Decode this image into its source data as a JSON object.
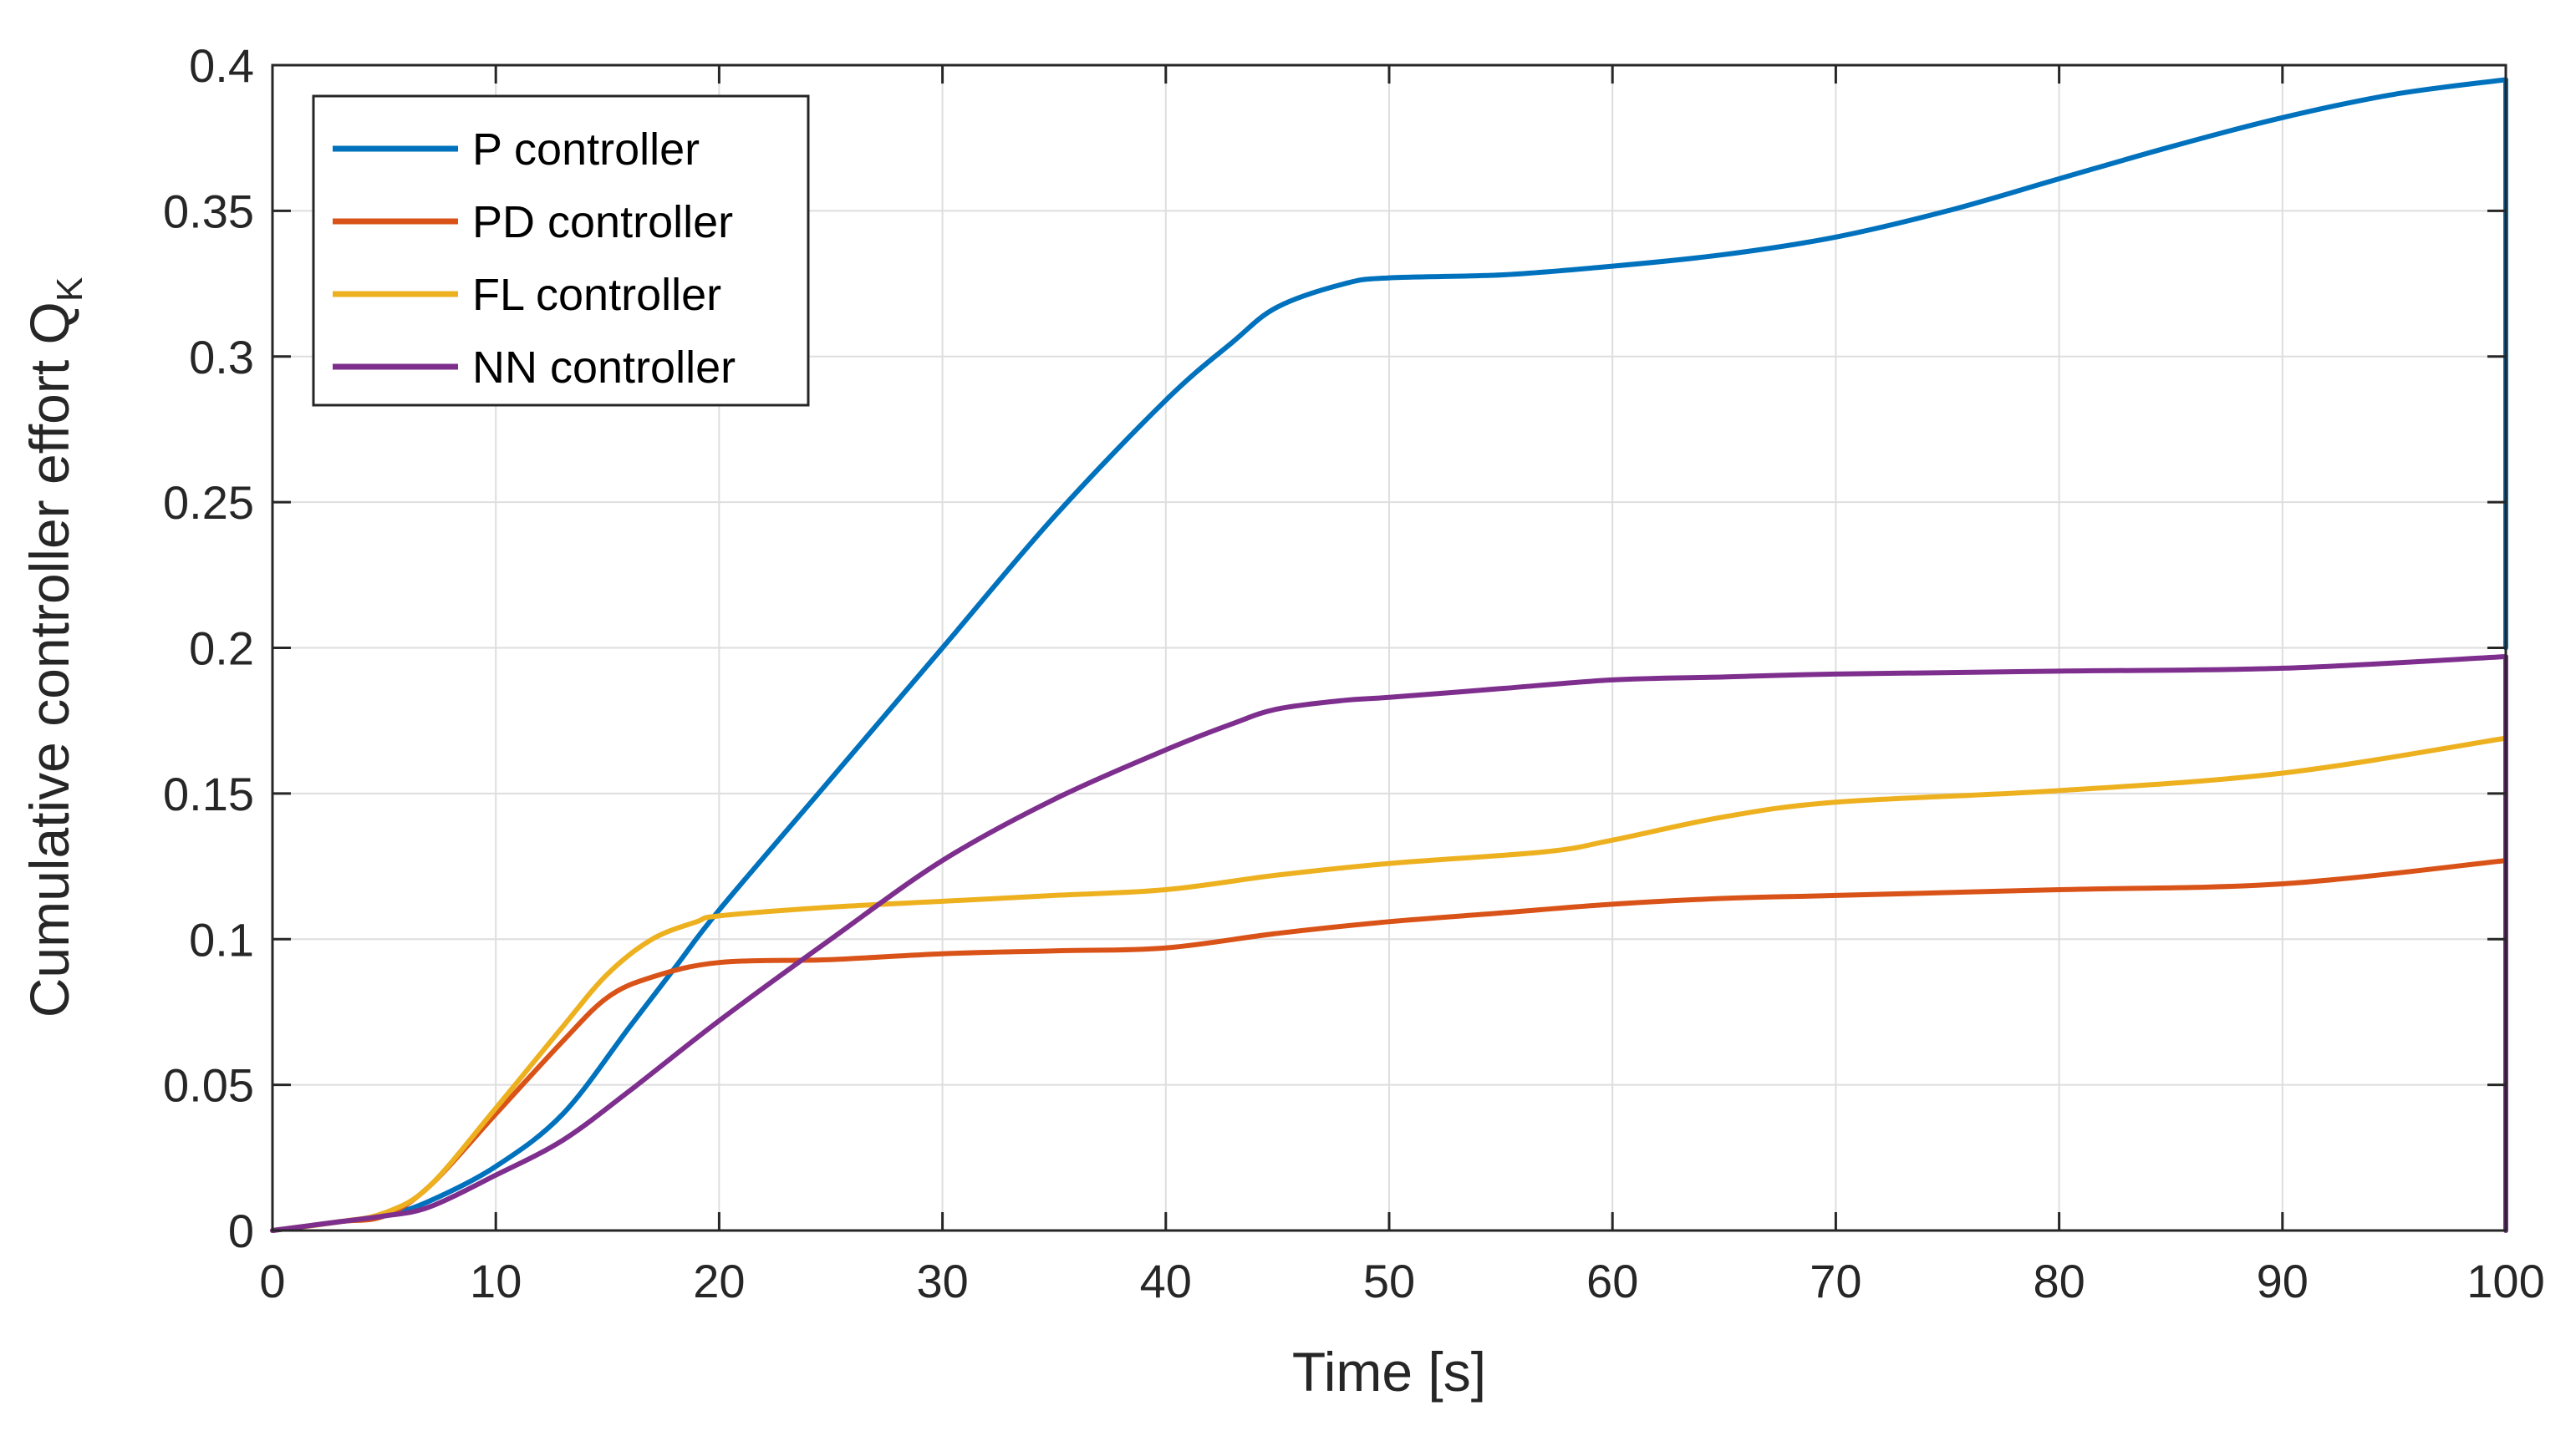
{
  "chart_data": {
    "type": "line",
    "title": "",
    "xlabel": "Time [s]",
    "ylabel": "Cumulative controller effort Q",
    "ylabel_subscript": "K",
    "xlim": [
      0,
      100
    ],
    "ylim": [
      0,
      0.4
    ],
    "xticks": [
      0,
      10,
      20,
      30,
      40,
      50,
      60,
      70,
      80,
      90,
      100
    ],
    "xtick_labels": [
      "0",
      "10",
      "20",
      "30",
      "40",
      "50",
      "60",
      "70",
      "80",
      "90",
      "100"
    ],
    "yticks": [
      0,
      0.05,
      0.1,
      0.15,
      0.2,
      0.25,
      0.3,
      0.35,
      0.4
    ],
    "ytick_labels": [
      "0",
      "0.05",
      "0.1",
      "0.15",
      "0.2",
      "0.25",
      "0.3",
      "0.35",
      "0.4"
    ],
    "grid": true,
    "legend_position": "top-left",
    "series": [
      {
        "name": "P controller",
        "color": "#0072BD",
        "points": [
          [
            0,
            0
          ],
          [
            3,
            0.003
          ],
          [
            5,
            0.005
          ],
          [
            7,
            0.01
          ],
          [
            10,
            0.022
          ],
          [
            13,
            0.04
          ],
          [
            16,
            0.07
          ],
          [
            18,
            0.09
          ],
          [
            20,
            0.11
          ],
          [
            25,
            0.155
          ],
          [
            30,
            0.2
          ],
          [
            35,
            0.245
          ],
          [
            40,
            0.285
          ],
          [
            43,
            0.305
          ],
          [
            45,
            0.317
          ],
          [
            48,
            0.325
          ],
          [
            50,
            0.327
          ],
          [
            55,
            0.328
          ],
          [
            60,
            0.331
          ],
          [
            65,
            0.335
          ],
          [
            70,
            0.341
          ],
          [
            75,
            0.35
          ],
          [
            80,
            0.361
          ],
          [
            85,
            0.372
          ],
          [
            90,
            0.382
          ],
          [
            95,
            0.39
          ],
          [
            100,
            0.395
          ],
          [
            100,
            0.2
          ]
        ]
      },
      {
        "name": "PD controller",
        "color": "#D95319",
        "points": [
          [
            0,
            0
          ],
          [
            3,
            0.003
          ],
          [
            5,
            0.005
          ],
          [
            7,
            0.015
          ],
          [
            10,
            0.04
          ],
          [
            13,
            0.065
          ],
          [
            15,
            0.08
          ],
          [
            17,
            0.087
          ],
          [
            20,
            0.092
          ],
          [
            25,
            0.093
          ],
          [
            30,
            0.095
          ],
          [
            35,
            0.096
          ],
          [
            40,
            0.097
          ],
          [
            45,
            0.102
          ],
          [
            50,
            0.106
          ],
          [
            55,
            0.109
          ],
          [
            60,
            0.112
          ],
          [
            65,
            0.114
          ],
          [
            70,
            0.115
          ],
          [
            80,
            0.117
          ],
          [
            90,
            0.119
          ],
          [
            100,
            0.127
          ],
          [
            100,
            0.12
          ]
        ]
      },
      {
        "name": "FL controller",
        "color": "#EDB120",
        "points": [
          [
            0,
            0
          ],
          [
            3,
            0.003
          ],
          [
            5,
            0.006
          ],
          [
            7,
            0.015
          ],
          [
            10,
            0.042
          ],
          [
            13,
            0.07
          ],
          [
            15,
            0.088
          ],
          [
            17,
            0.1
          ],
          [
            19,
            0.106
          ],
          [
            20,
            0.108
          ],
          [
            25,
            0.111
          ],
          [
            30,
            0.113
          ],
          [
            35,
            0.115
          ],
          [
            40,
            0.117
          ],
          [
            45,
            0.122
          ],
          [
            50,
            0.126
          ],
          [
            57,
            0.13
          ],
          [
            60,
            0.134
          ],
          [
            65,
            0.142
          ],
          [
            70,
            0.147
          ],
          [
            80,
            0.151
          ],
          [
            90,
            0.157
          ],
          [
            100,
            0.169
          ],
          [
            100,
            0.12
          ]
        ]
      },
      {
        "name": "NN controller",
        "color": "#7E2F8E",
        "points": [
          [
            0,
            0
          ],
          [
            3,
            0.003
          ],
          [
            5,
            0.005
          ],
          [
            7,
            0.008
          ],
          [
            10,
            0.019
          ],
          [
            13,
            0.031
          ],
          [
            16,
            0.048
          ],
          [
            20,
            0.072
          ],
          [
            25,
            0.1
          ],
          [
            30,
            0.127
          ],
          [
            35,
            0.148
          ],
          [
            40,
            0.165
          ],
          [
            43,
            0.174
          ],
          [
            45,
            0.179
          ],
          [
            48,
            0.182
          ],
          [
            50,
            0.183
          ],
          [
            55,
            0.186
          ],
          [
            60,
            0.189
          ],
          [
            65,
            0.19
          ],
          [
            70,
            0.191
          ],
          [
            80,
            0.192
          ],
          [
            90,
            0.193
          ],
          [
            100,
            0.197
          ],
          [
            100,
            0
          ]
        ]
      }
    ]
  }
}
